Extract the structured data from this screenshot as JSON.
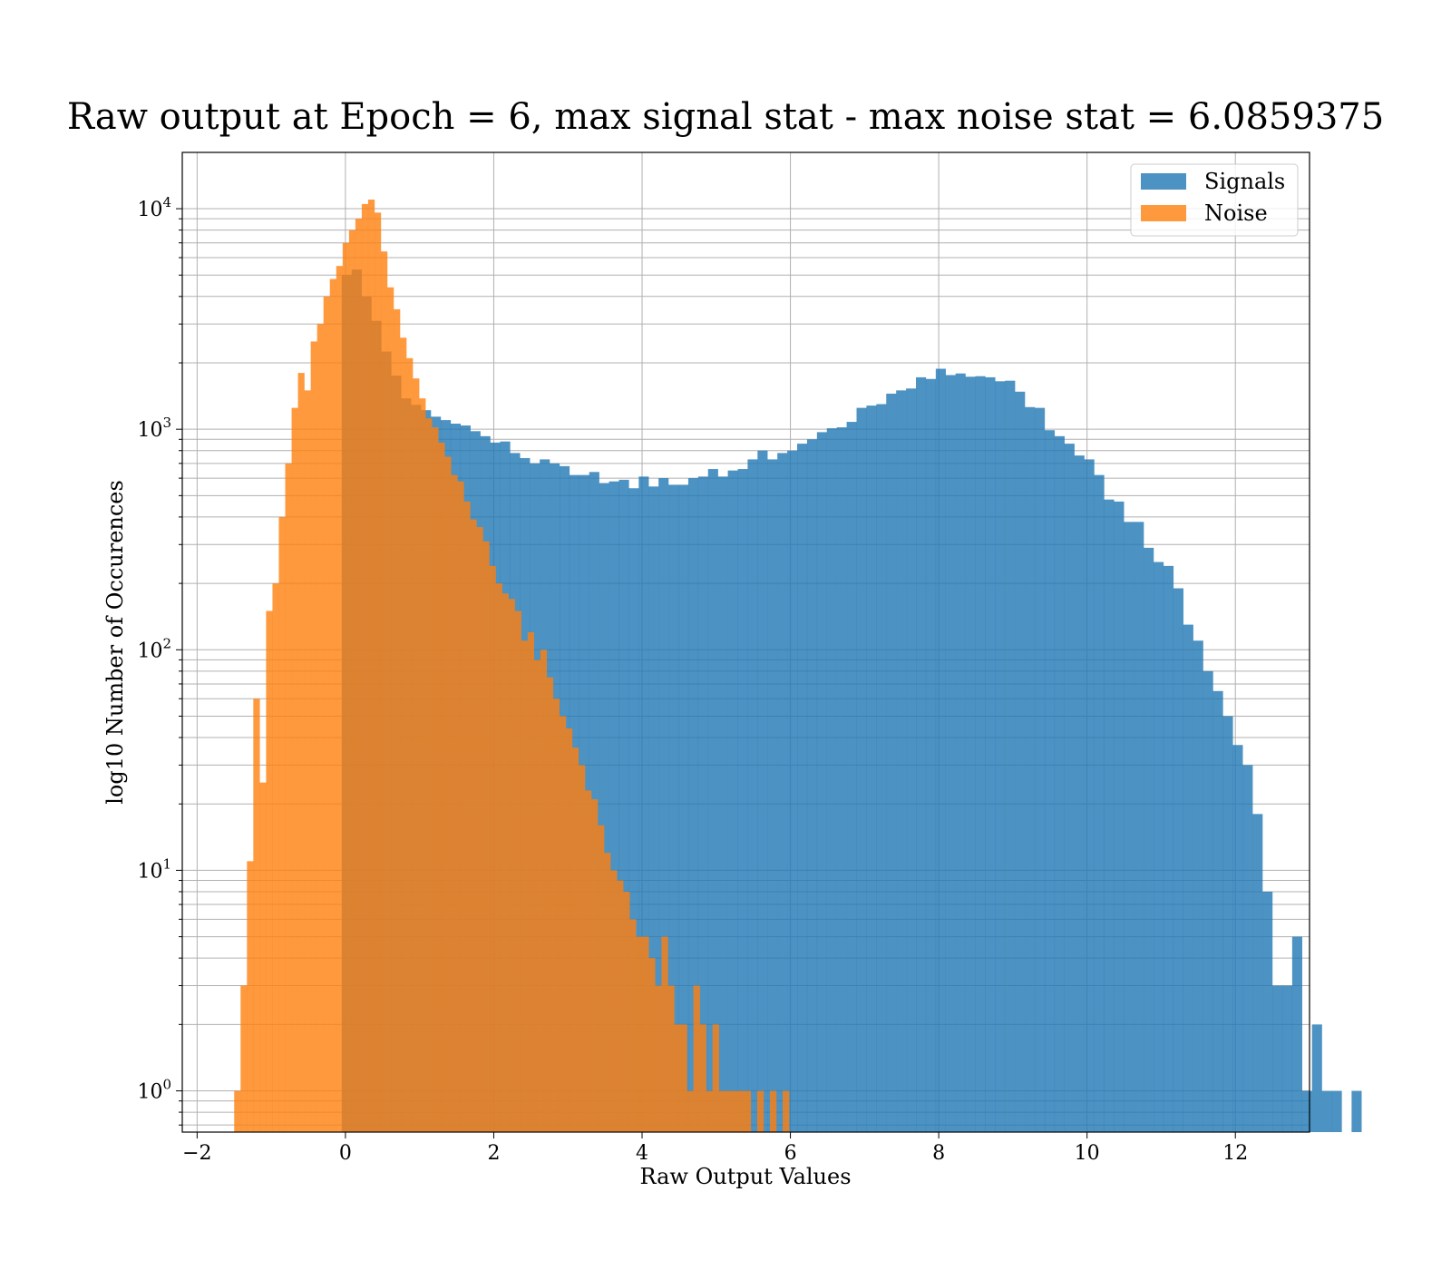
{
  "chart_data": {
    "type": "histogram",
    "title": "Raw output at Epoch = 6, max signal stat - max noise stat = 6.0859375",
    "xlabel": "Raw Output Values",
    "ylabel": "log10 Number of Occurences",
    "xlim": [
      -2.2,
      13.0
    ],
    "ylim": [
      0.65,
      18000
    ],
    "yscale": "log",
    "grid": true,
    "legend_position": "top-right",
    "x_ticks": [
      -2,
      0,
      2,
      4,
      6,
      8,
      10,
      12
    ],
    "x_tick_labels": [
      "−2",
      "0",
      "2",
      "4",
      "6",
      "8",
      "10",
      "12"
    ],
    "y_ticks": [
      {
        "value": 1,
        "base": "10",
        "exp": "0"
      },
      {
        "value": 10,
        "base": "10",
        "exp": "1"
      },
      {
        "value": 100,
        "base": "10",
        "exp": "2"
      },
      {
        "value": 1000,
        "base": "10",
        "exp": "3"
      },
      {
        "value": 10000,
        "base": "10",
        "exp": "4"
      }
    ],
    "series": [
      {
        "name": "Signals",
        "color": "#1f77b4",
        "alpha": 0.8,
        "bin_start": -0.05,
        "bin_width": 0.1335,
        "counts": [
          5000,
          5300,
          4000,
          3100,
          2250,
          1750,
          1380,
          1290,
          1220,
          1140,
          1100,
          1060,
          1040,
          980,
          930,
          870,
          880,
          780,
          740,
          700,
          730,
          700,
          680,
          620,
          620,
          640,
          570,
          580,
          590,
          540,
          610,
          550,
          600,
          560,
          560,
          600,
          610,
          660,
          610,
          650,
          660,
          730,
          800,
          730,
          780,
          800,
          860,
          900,
          970,
          1010,
          1020,
          1080,
          1250,
          1280,
          1300,
          1450,
          1500,
          1530,
          1720,
          1690,
          1880,
          1760,
          1790,
          1730,
          1740,
          1720,
          1650,
          1660,
          1480,
          1260,
          1250,
          990,
          930,
          860,
          760,
          730,
          620,
          480,
          470,
          380,
          380,
          290,
          250,
          240,
          190,
          130,
          110,
          80,
          65,
          50,
          37,
          30,
          18,
          8,
          3,
          3,
          5,
          1,
          2,
          1,
          1,
          0,
          1
        ]
      },
      {
        "name": "Noise",
        "color": "#ff7f0e",
        "alpha": 0.8,
        "bin_start": -1.5,
        "bin_width": 0.086,
        "counts": [
          1,
          3,
          11,
          60,
          25,
          150,
          200,
          400,
          700,
          1250,
          1800,
          1500,
          2500,
          3000,
          4000,
          4800,
          5500,
          7000,
          8000,
          9000,
          10500,
          11000,
          9600,
          6400,
          4400,
          3500,
          2600,
          2100,
          1700,
          1380,
          1120,
          1020,
          870,
          750,
          620,
          580,
          470,
          390,
          360,
          310,
          240,
          200,
          180,
          170,
          150,
          110,
          120,
          90,
          100,
          75,
          60,
          50,
          44,
          36,
          30,
          23,
          21,
          16,
          12,
          10,
          9,
          8,
          6,
          5,
          5,
          4,
          3,
          5,
          3,
          2,
          2,
          1,
          3,
          2,
          1,
          2,
          1,
          1,
          1,
          1,
          1,
          0,
          1,
          0,
          1,
          0,
          1
        ]
      }
    ]
  }
}
